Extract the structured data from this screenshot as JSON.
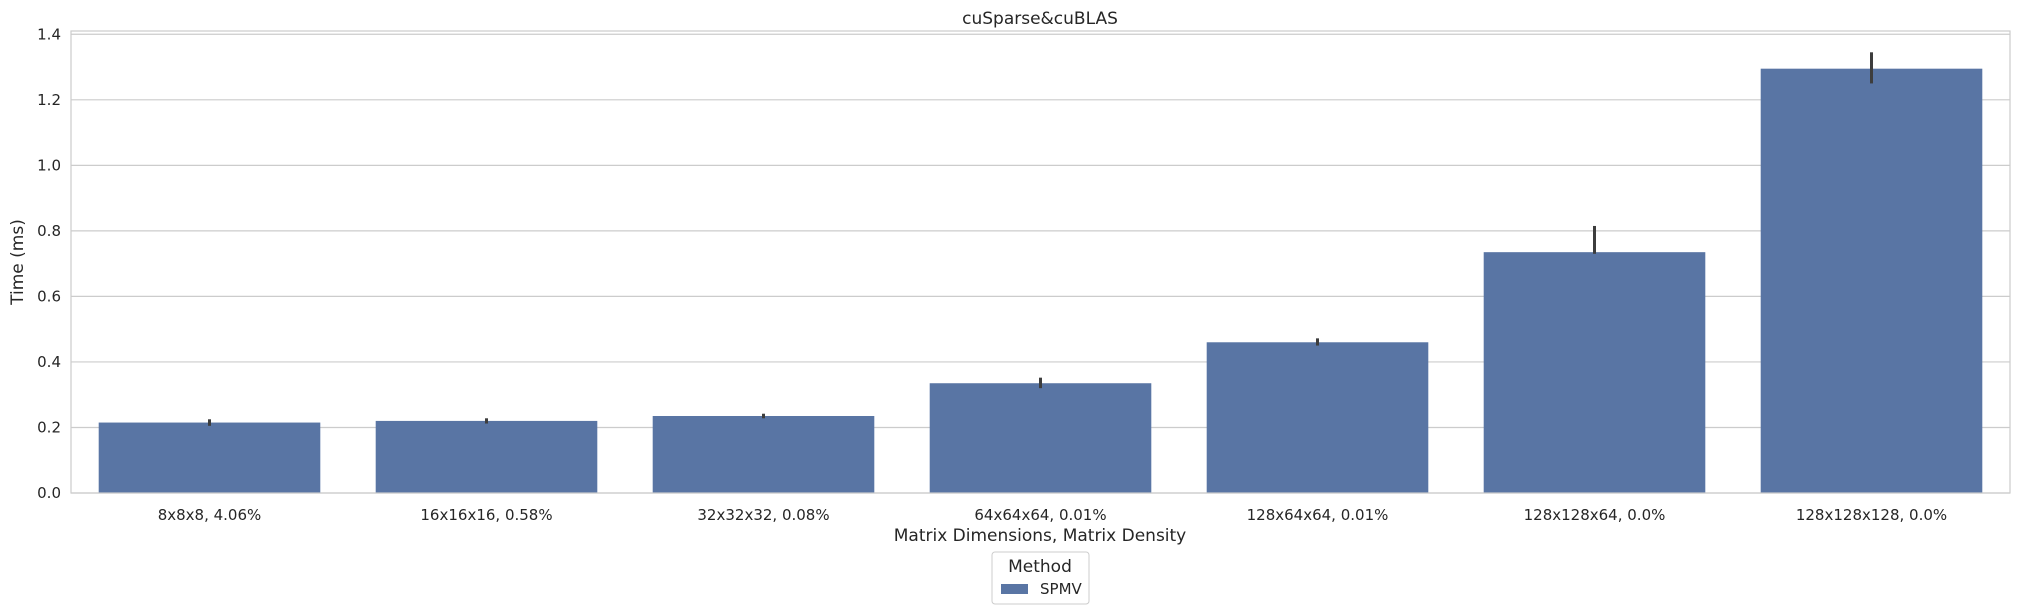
{
  "chart_data": {
    "type": "bar",
    "title": "cuSparse&cuBLAS",
    "xlabel": "Matrix Dimensions, Matrix Density",
    "ylabel": "Time (ms)",
    "ylim": [
      0,
      1.41
    ],
    "yticks": [
      0.0,
      0.2,
      0.4,
      0.6,
      0.8,
      1.0,
      1.2,
      1.4
    ],
    "ytick_labels": [
      "0.0",
      "0.2",
      "0.4",
      "0.6",
      "0.8",
      "1.0",
      "1.2",
      "1.4"
    ],
    "grid": "horizontal",
    "categories": [
      "8x8x8, 4.06%",
      "16x16x16, 0.58%",
      "32x32x32, 0.08%",
      "64x64x64, 0.01%",
      "128x64x64, 0.01%",
      "128x128x64, 0.0%",
      "128x128x128, 0.0%"
    ],
    "series": [
      {
        "name": "SPMV",
        "color": "#5975a4",
        "values": [
          0.215,
          0.22,
          0.235,
          0.335,
          0.46,
          0.735,
          1.295
        ],
        "error_low": [
          0.205,
          0.212,
          0.228,
          0.32,
          0.45,
          0.73,
          1.25
        ],
        "error_high": [
          0.225,
          0.228,
          0.242,
          0.352,
          0.472,
          0.815,
          1.345
        ]
      }
    ],
    "legend": {
      "title": "Method",
      "placement": "bottom-center"
    }
  }
}
